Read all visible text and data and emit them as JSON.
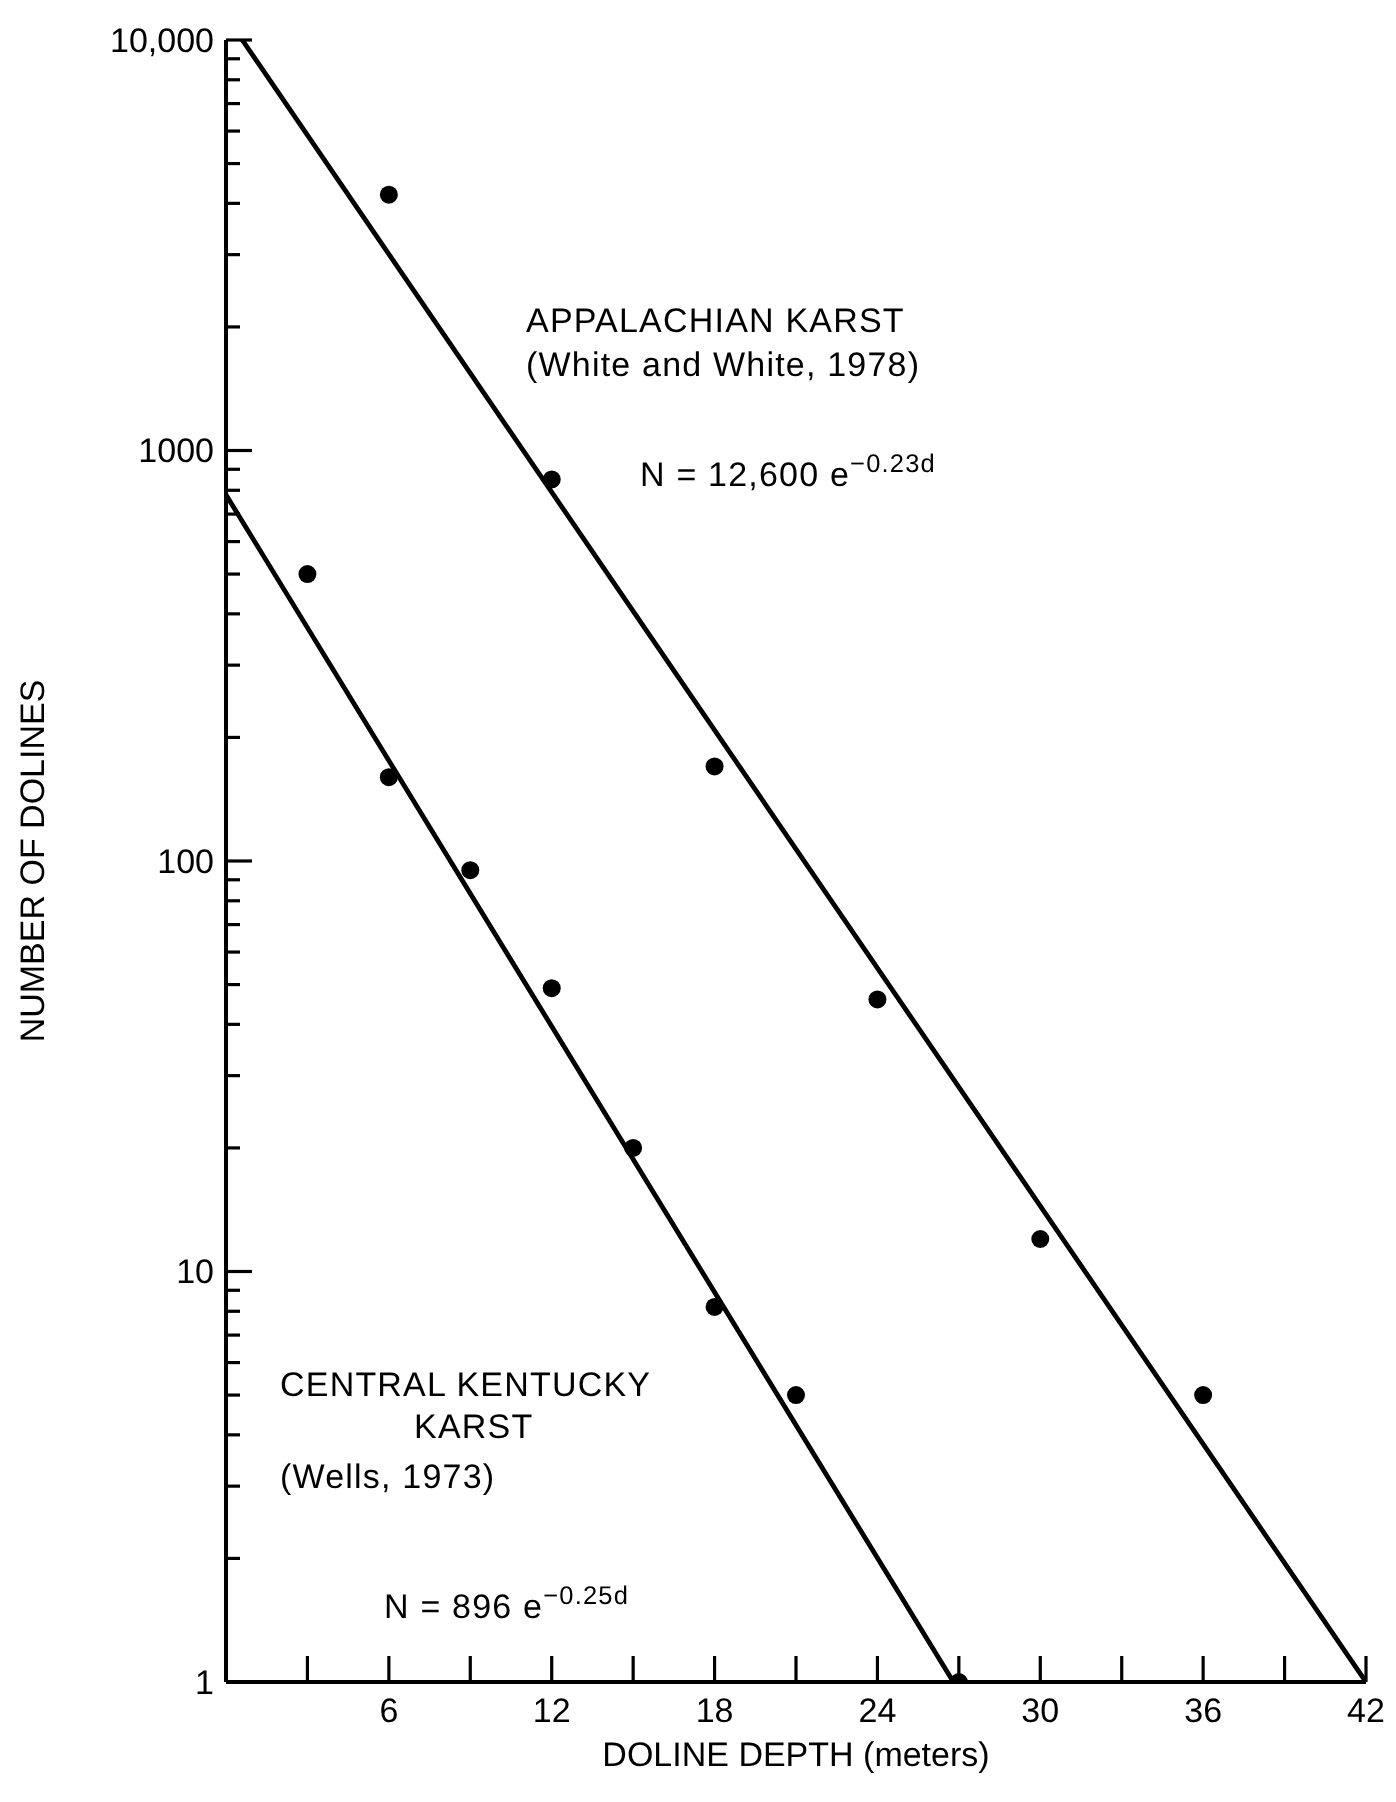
{
  "chart_data": {
    "type": "scatter",
    "xlabel": "DOLINE DEPTH (meters)",
    "ylabel": "NUMBER OF DOLINES",
    "log": "y",
    "grid": false,
    "legend": false,
    "xlim": [
      0,
      42
    ],
    "ylim": [
      1,
      10000
    ],
    "xticks": [
      {
        "value": 3,
        "label": null
      },
      6,
      {
        "value": 9,
        "label": null
      },
      12,
      {
        "value": 15,
        "label": null
      },
      18,
      {
        "value": 21,
        "label": null
      },
      24,
      {
        "value": 27,
        "label": null
      },
      30,
      {
        "value": 33,
        "label": null
      },
      36,
      {
        "value": 39,
        "label": null
      },
      42
    ],
    "yticks": [
      1,
      {
        "value": 2,
        "label": null
      },
      {
        "value": 3,
        "label": null
      },
      {
        "value": 4,
        "label": null
      },
      {
        "value": 5,
        "label": null
      },
      {
        "value": 6,
        "label": null
      },
      {
        "value": 7,
        "label": null
      },
      {
        "value": 8,
        "label": null
      },
      {
        "value": 9,
        "label": null
      },
      10,
      {
        "value": 20,
        "label": null
      },
      {
        "value": 30,
        "label": null
      },
      {
        "value": 40,
        "label": null
      },
      {
        "value": 50,
        "label": null
      },
      {
        "value": 60,
        "label": null
      },
      {
        "value": 70,
        "label": null
      },
      {
        "value": 80,
        "label": null
      },
      {
        "value": 90,
        "label": null
      },
      100,
      {
        "value": 200,
        "label": null
      },
      {
        "value": 300,
        "label": null
      },
      {
        "value": 400,
        "label": null
      },
      {
        "value": 500,
        "label": null
      },
      {
        "value": 600,
        "label": null
      },
      {
        "value": 700,
        "label": null
      },
      {
        "value": 800,
        "label": null
      },
      {
        "value": 900,
        "label": null
      },
      1000,
      {
        "value": 2000,
        "label": null
      },
      {
        "value": 3000,
        "label": null
      },
      {
        "value": 4000,
        "label": null
      },
      {
        "value": 5000,
        "label": null
      },
      {
        "value": 6000,
        "label": null
      },
      {
        "value": 7000,
        "label": null
      },
      {
        "value": 8000,
        "label": null
      },
      {
        "value": 9000,
        "label": null
      },
      {
        "value": 10000,
        "label": "10,000"
      }
    ],
    "series": [
      {
        "type": "scatter",
        "color": "#000000",
        "marker": "circle",
        "x": [
          6,
          12,
          18,
          24,
          30,
          36
        ],
        "values": [
          4200,
          850,
          170,
          46,
          12,
          5
        ]
      },
      {
        "type": "line",
        "color": "#000000",
        "marker": "none",
        "line_style": "solid",
        "x": [
          0.6,
          42
        ],
        "values": [
          10000,
          1
        ]
      },
      {
        "type": "scatter",
        "color": "#000000",
        "marker": "circle",
        "x": [
          3,
          6,
          9,
          12,
          15,
          18,
          21,
          27
        ],
        "values": [
          500,
          160,
          95,
          49,
          20,
          8.2,
          5,
          1
        ]
      },
      {
        "type": "line",
        "color": "#000000",
        "marker": "none",
        "line_style": "solid",
        "x": [
          0,
          26.8
        ],
        "values": [
          780,
          1
        ]
      }
    ],
    "annotations": [
      "APPALACHIAN KARST",
      "(White and White, 1978)",
      "N = 12,600 e$^{−0.23d}$",
      "CENTRAL KENTUCKY",
      "KARST",
      "(Wells, 1973)",
      "N = 896 e$^{−0.25d}$"
    ]
  }
}
